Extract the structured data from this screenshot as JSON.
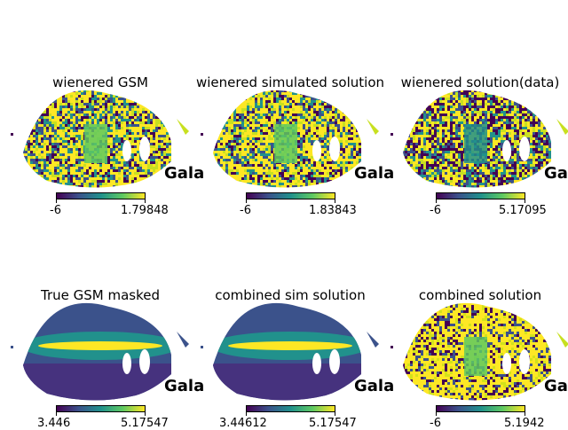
{
  "panels": [
    {
      "title": "wienered GSM",
      "vmin": "-6",
      "vmax": "1.79848",
      "coord_label": "Gala",
      "style": "noise-gsm"
    },
    {
      "title": "wienered simulated solution",
      "vmin": "-6",
      "vmax": "1.83843",
      "coord_label": "Gala",
      "style": "noise-gsm"
    },
    {
      "title": "wienered solution(data)",
      "vmin": "-6",
      "vmax": "5.17095",
      "coord_label": "Gala",
      "style": "noise-dark"
    },
    {
      "title": "True GSM masked",
      "vmin": "3.446",
      "vmax": "5.17547",
      "coord_label": "Gala",
      "style": "smooth"
    },
    {
      "title": "combined sim solution",
      "vmin": "3.44612",
      "vmax": "5.17547",
      "coord_label": "Gala",
      "style": "smooth"
    },
    {
      "title": "combined solution",
      "vmin": "-6",
      "vmax": "5.1942",
      "coord_label": "Gala",
      "style": "noise-yellow"
    }
  ],
  "chart_data": [
    {
      "type": "heatmap",
      "projection": "mollweide",
      "title": "wienered GSM",
      "colormap": "viridis",
      "colorbar_range": [
        -6,
        1.79848
      ]
    },
    {
      "type": "heatmap",
      "projection": "mollweide",
      "title": "wienered simulated solution",
      "colormap": "viridis",
      "colorbar_range": [
        -6,
        1.83843
      ]
    },
    {
      "type": "heatmap",
      "projection": "mollweide",
      "title": "wienered solution(data)",
      "colormap": "viridis",
      "colorbar_range": [
        -6,
        5.17095
      ]
    },
    {
      "type": "heatmap",
      "projection": "mollweide",
      "title": "True GSM masked",
      "colormap": "viridis",
      "colorbar_range": [
        3.446,
        5.17547
      ]
    },
    {
      "type": "heatmap",
      "projection": "mollweide",
      "title": "combined sim solution",
      "colormap": "viridis",
      "colorbar_range": [
        3.44612,
        5.17547
      ]
    },
    {
      "type": "heatmap",
      "projection": "mollweide",
      "title": "combined solution",
      "colormap": "viridis",
      "colorbar_range": [
        -6,
        5.1942
      ]
    }
  ]
}
